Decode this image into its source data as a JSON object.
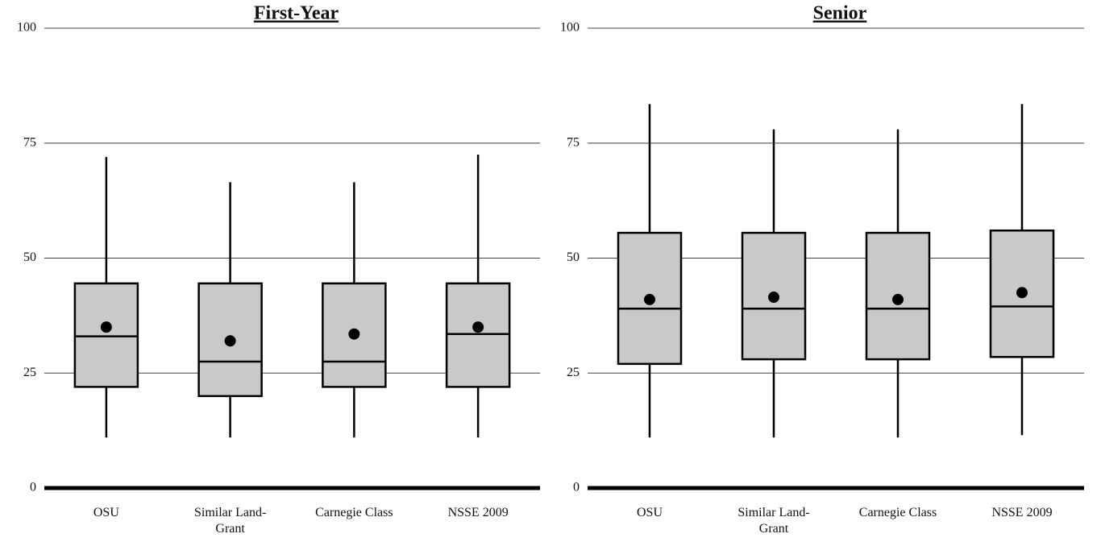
{
  "chart_data": [
    {
      "type": "box",
      "title": "First-Year",
      "categories": [
        "OSU",
        "Similar Land-Grant",
        "Carnegie Class",
        "NSSE 2009"
      ],
      "boxes": [
        {
          "min": 11,
          "q1": 22,
          "median": 33,
          "q3": 44.5,
          "max": 72,
          "mean": 35
        },
        {
          "min": 11,
          "q1": 20,
          "median": 27.5,
          "q3": 44.5,
          "max": 66.5,
          "mean": 32
        },
        {
          "min": 11,
          "q1": 22,
          "median": 27.5,
          "q3": 44.5,
          "max": 66.5,
          "mean": 33.5
        },
        {
          "min": 11,
          "q1": 22,
          "median": 33.5,
          "q3": 44.5,
          "max": 72.5,
          "mean": 35
        }
      ],
      "ylim": [
        0,
        100
      ],
      "yticks": [
        0,
        25,
        50,
        75,
        100
      ],
      "grid": true,
      "color": "#c9c9c9"
    },
    {
      "type": "box",
      "title": "Senior",
      "categories": [
        "OSU",
        "Similar Land-Grant",
        "Carnegie Class",
        "NSSE 2009"
      ],
      "boxes": [
        {
          "min": 11,
          "q1": 27,
          "median": 39,
          "q3": 55.5,
          "max": 83.5,
          "mean": 41
        },
        {
          "min": 11,
          "q1": 28,
          "median": 39,
          "q3": 55.5,
          "max": 78,
          "mean": 41.5
        },
        {
          "min": 11,
          "q1": 28,
          "median": 39,
          "q3": 55.5,
          "max": 78,
          "mean": 41
        },
        {
          "min": 11.5,
          "q1": 28.5,
          "median": 39.5,
          "q3": 56,
          "max": 83.5,
          "mean": 42.5
        }
      ],
      "ylim": [
        0,
        100
      ],
      "yticks": [
        0,
        25,
        50,
        75,
        100
      ],
      "grid": true,
      "color": "#c9c9c9"
    }
  ]
}
